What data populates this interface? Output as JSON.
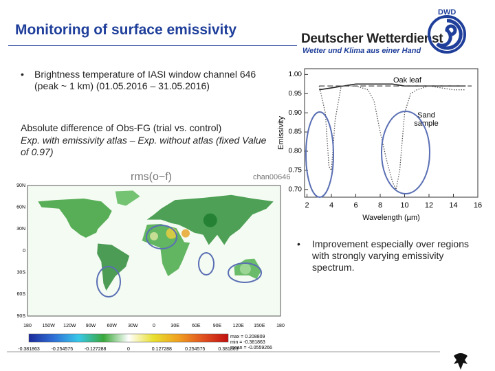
{
  "header": {
    "title": "Monitoring of surface emissivity",
    "logo_mark": "DWD",
    "logo_name": "Deutscher Wetterdienst",
    "logo_slogan": "Wetter und Klima aus einer Hand"
  },
  "left": {
    "bullet": "Brightness temperature of IASI window channel 646 (peak ~ 1 km) (01.05.2016 – 31.05.2016)",
    "caption": "Absolute difference of Obs-FG (trial vs. control)",
    "caption_italic": "Exp. with emissivity atlas – Exp. without atlas (fixed Value of 0.97)"
  },
  "map": {
    "title": "rms(o−f)",
    "channel": "chan00646",
    "lat_labels": [
      "90N",
      "60N",
      "30N",
      "0",
      "30S",
      "60S",
      "90S"
    ],
    "lon_labels": [
      "180",
      "150W",
      "120W",
      "90W",
      "60W",
      "30W",
      "0",
      "30E",
      "60E",
      "90E",
      "120E",
      "150E",
      "180"
    ],
    "colorbar_labels": [
      "-0.381863",
      "-0.254575",
      "-0.127288",
      "0",
      "0.127288",
      "0.254575",
      "0.381863"
    ],
    "stats": [
      "max = 0.208809",
      "min = -0.381863",
      "mean = -0.0559266"
    ]
  },
  "right": {
    "bullet": "Improvement especially over regions with strongly varying emissivity spectrum."
  },
  "chart_data": {
    "type": "line",
    "xlabel": "Wavelength (µm)",
    "ylabel": "Emissivity",
    "xlim": [
      1.8,
      16
    ],
    "ylim": [
      0.68,
      1.015
    ],
    "xticks": [
      2,
      4,
      6,
      8,
      10,
      12,
      14,
      16
    ],
    "yticks": [
      {
        "value": 0.7,
        "label": "0.70"
      },
      0.75,
      {
        "value": 0.8,
        "label": "0.80"
      },
      0.85,
      {
        "value": 0.9,
        "label": "0.90"
      },
      0.95,
      {
        "value": 1,
        "label": "1.00"
      }
    ],
    "annotations": [
      "Oak leaf",
      "Sand sample"
    ],
    "series": [
      {
        "color": "#222222",
        "style": "solid",
        "x": [
          3,
          4,
          5,
          6,
          7,
          8,
          9,
          10,
          11,
          12,
          13,
          14,
          15
        ],
        "values": [
          0.96,
          0.965,
          0.97,
          0.975,
          0.975,
          0.975,
          0.975,
          0.97,
          0.97,
          0.97,
          0.97,
          0.97,
          0.97
        ]
      },
      {
        "color": "#444444",
        "style": "dashed",
        "x": [
          3,
          15.5
        ],
        "values": [
          0.97,
          0.97
        ]
      },
      {
        "color": "#555555",
        "style": "dotted",
        "x": [
          3,
          3.5,
          3.8,
          4,
          4.3,
          4.8,
          5,
          6,
          7,
          7.5,
          8,
          8.5,
          9,
          9.3,
          9.6,
          10,
          10.5,
          11,
          12,
          13,
          14,
          15
        ],
        "values": [
          0.97,
          0.9,
          0.76,
          0.75,
          0.88,
          0.97,
          0.97,
          0.97,
          0.96,
          0.93,
          0.85,
          0.78,
          0.72,
          0.7,
          0.75,
          0.9,
          0.95,
          0.96,
          0.97,
          0.965,
          0.96,
          0.96
        ]
      }
    ]
  }
}
